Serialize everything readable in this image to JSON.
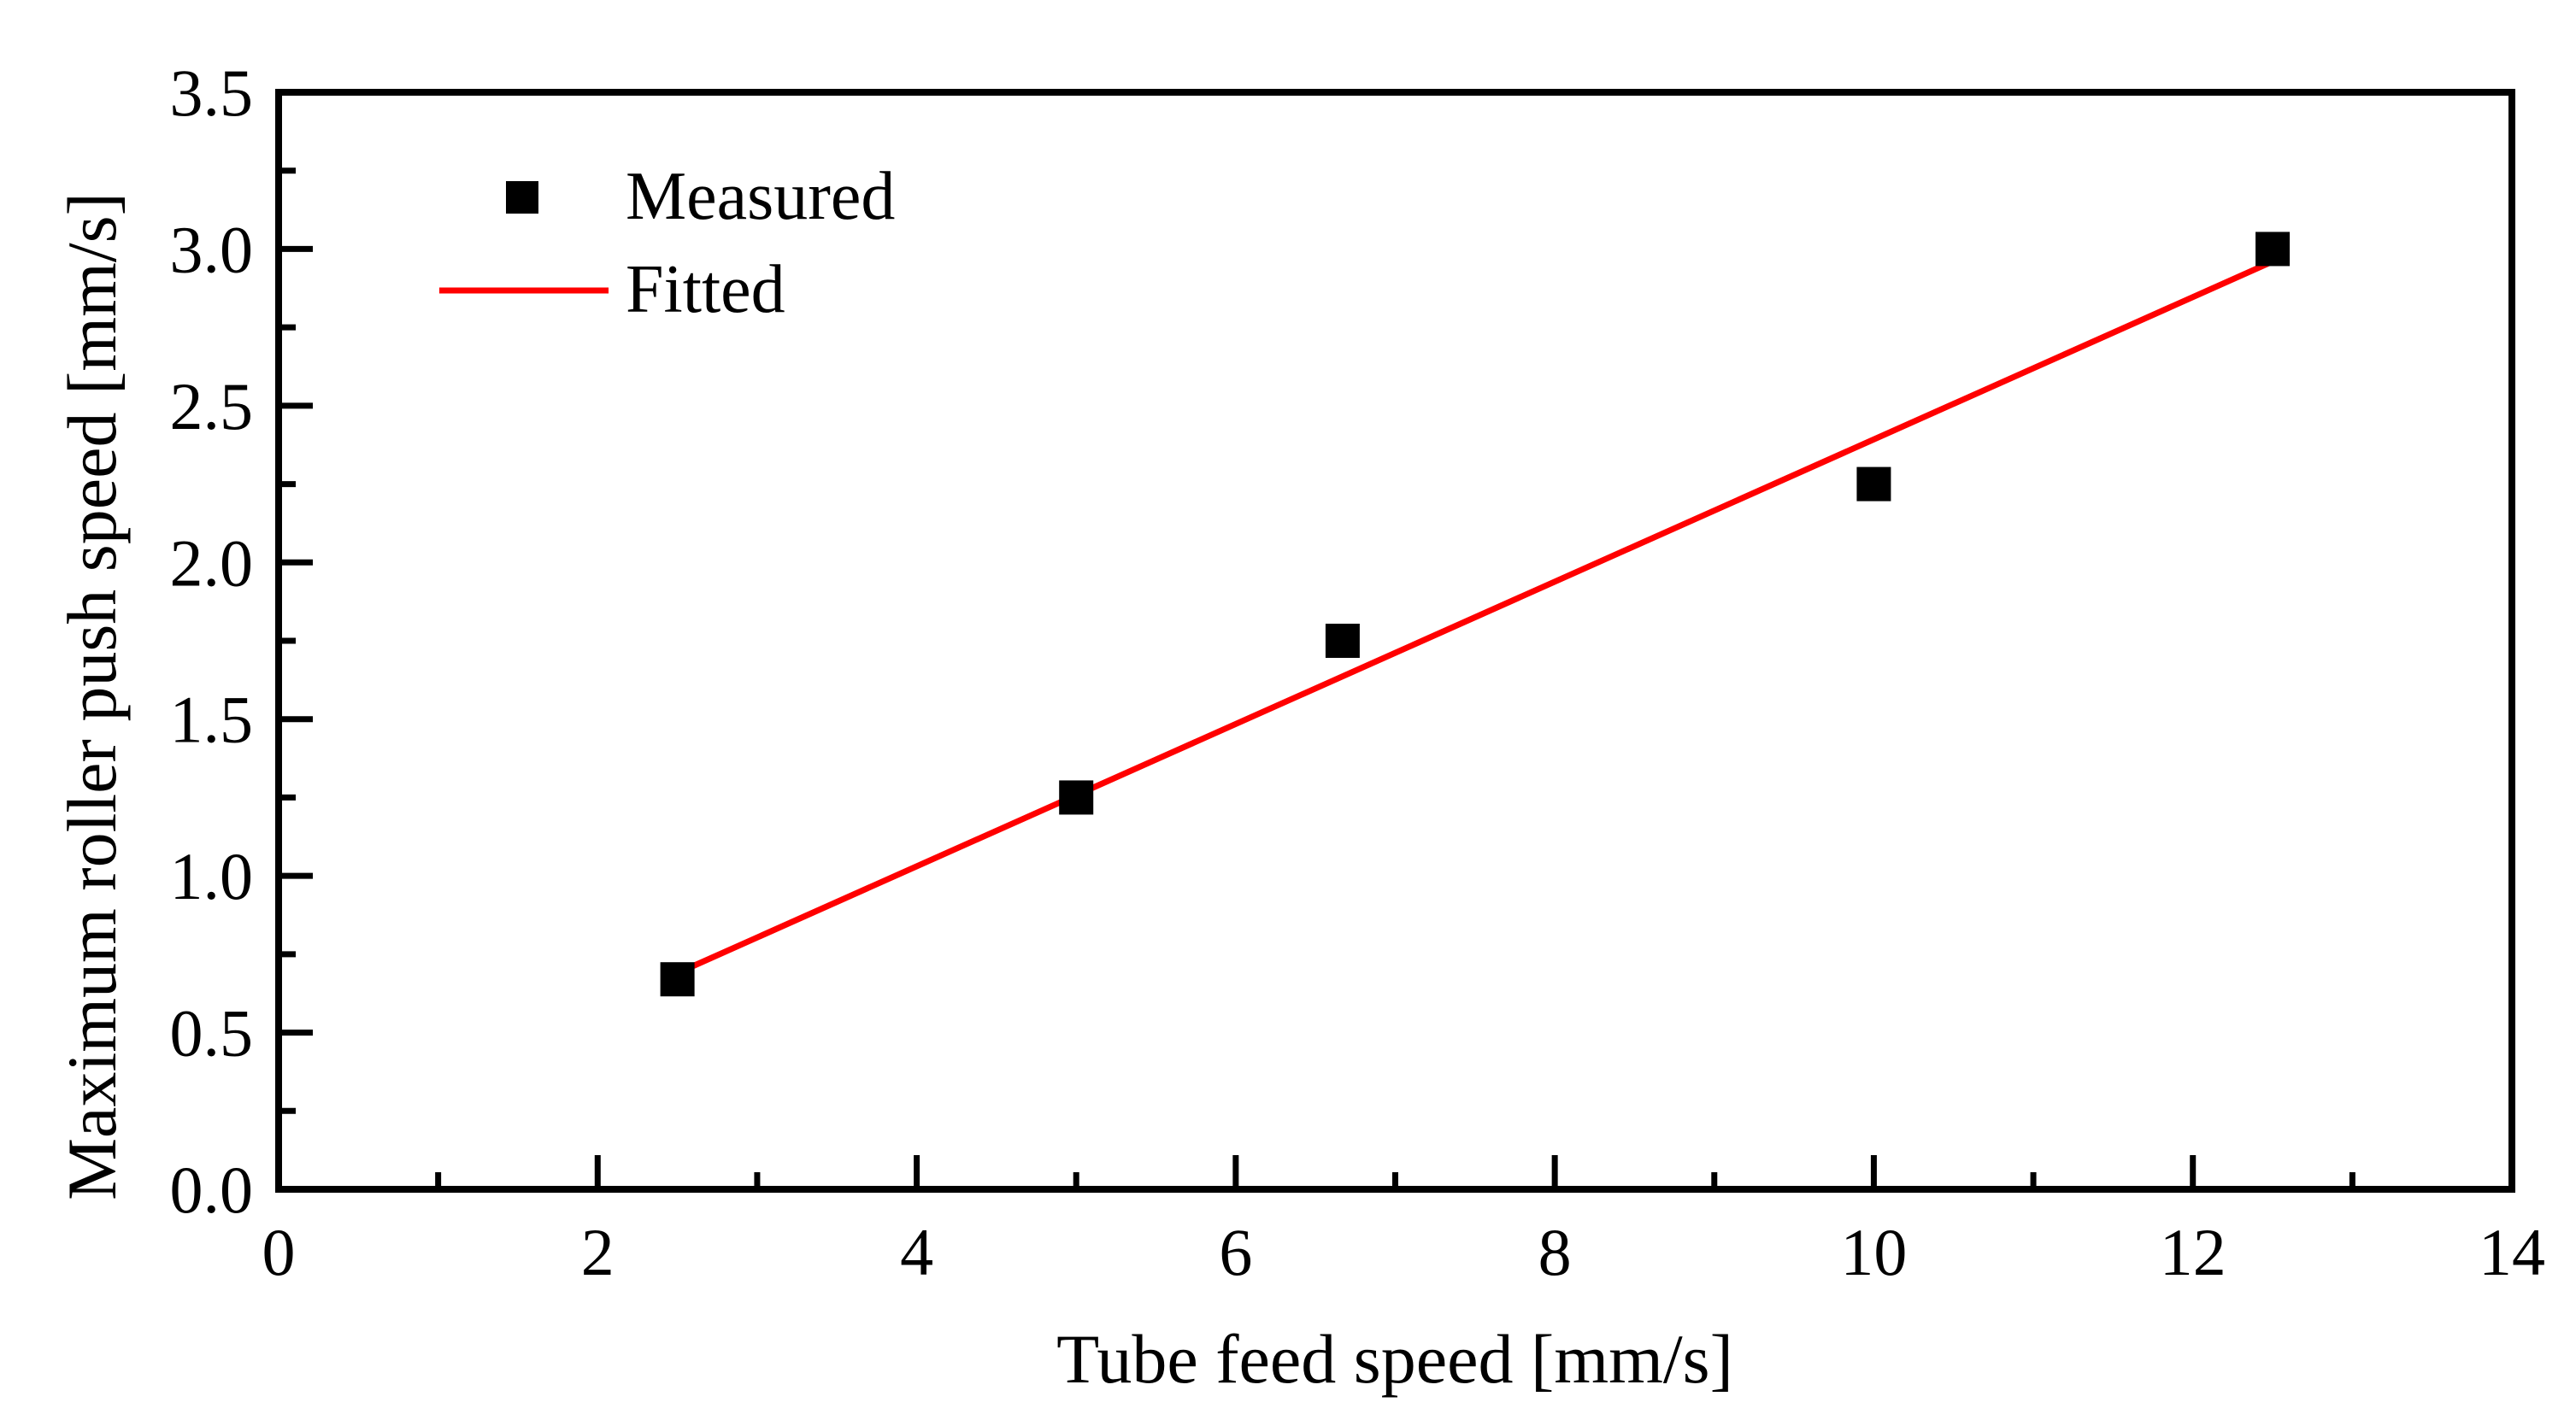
{
  "chart_data": {
    "type": "scatter",
    "xlabel": "Tube feed speed [mm/s]",
    "ylabel": "Maximum roller push speed [mm/s]",
    "xlim": [
      0,
      14
    ],
    "ylim": [
      0,
      3.5
    ],
    "x_major_ticks": [
      "0",
      "2",
      "4",
      "6",
      "8",
      "10",
      "12",
      "14"
    ],
    "x_minor_ticks": [
      1,
      3,
      5,
      7,
      9,
      11,
      13
    ],
    "y_major_ticks": [
      "0.0",
      "0.5",
      "1.0",
      "1.5",
      "2.0",
      "2.5",
      "3.0",
      "3.5"
    ],
    "y_minor_ticks": [
      0.25,
      0.75,
      1.25,
      1.75,
      2.25,
      2.75,
      3.25
    ],
    "grid": false,
    "legend_position": "top-left",
    "series": [
      {
        "name": "Measured",
        "kind": "scatter",
        "marker": "square",
        "color": "#000000",
        "x": [
          2.5,
          5.0,
          6.67,
          10.0,
          12.5
        ],
        "y": [
          0.67,
          1.25,
          1.75,
          2.25,
          3.0
        ]
      },
      {
        "name": "Fitted",
        "kind": "line",
        "color": "#ff0000",
        "x": [
          2.5,
          12.5
        ],
        "y": [
          0.69,
          2.96
        ]
      }
    ]
  }
}
